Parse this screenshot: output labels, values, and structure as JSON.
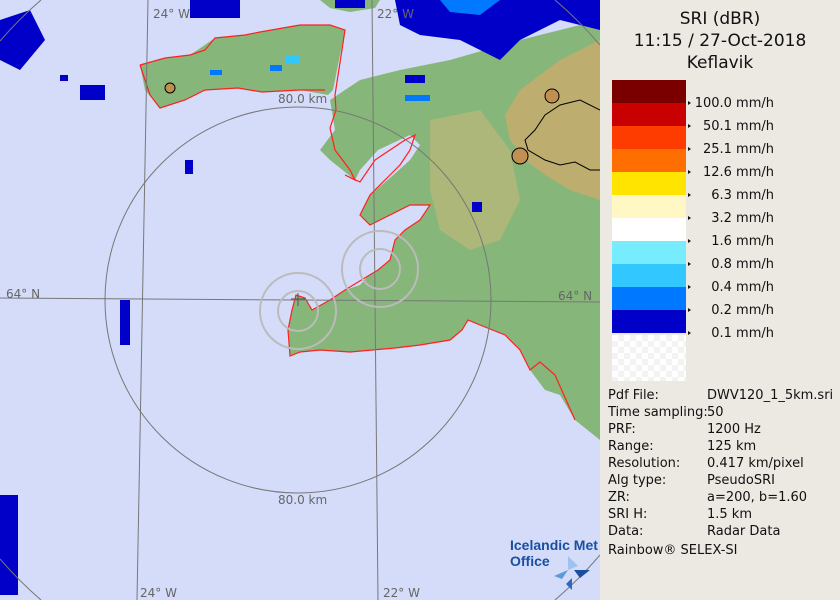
{
  "header": {
    "product": "SRI (dBR)",
    "datetime": "11:15 / 27-Oct-2018",
    "site": "Keflavik"
  },
  "legend": [
    {
      "label": "100.0 mm/h",
      "color": "#7a0000"
    },
    {
      "label": "50.1 mm/h",
      "color": "#c80000"
    },
    {
      "label": "25.1 mm/h",
      "color": "#ff3c00"
    },
    {
      "label": "12.6 mm/h",
      "color": "#ff6e00"
    },
    {
      "label": "6.3 mm/h",
      "color": "#ffe400"
    },
    {
      "label": "3.2 mm/h",
      "color": "#fff8c4"
    },
    {
      "label": "1.6 mm/h",
      "color": "#ffffff"
    },
    {
      "label": "0.8 mm/h",
      "color": "#78ecff"
    },
    {
      "label": "0.4 mm/h",
      "color": "#32c8ff"
    },
    {
      "label": "0.2 mm/h",
      "color": "#0078ff"
    },
    {
      "label": "0.1 mm/h",
      "color": "#0000c8"
    }
  ],
  "info": [
    {
      "key": "Pdf File:",
      "value": "DWV120_1_5km.sri"
    },
    {
      "key": "Time sampling:",
      "value": "50"
    },
    {
      "key": "PRF:",
      "value": "1200 Hz"
    },
    {
      "key": "Range:",
      "value": "125 km"
    },
    {
      "key": "Resolution:",
      "value": "0.417 km/pixel"
    },
    {
      "key": "Alg type:",
      "value": "PseudoSRI"
    },
    {
      "key": "ZR:",
      "value": "a=200, b=1.60"
    },
    {
      "key": "SRI H:",
      "value": "1.5 km"
    },
    {
      "key": "Data:",
      "value": "Radar Data"
    }
  ],
  "footer": "Rainbow® SELEX-SI",
  "map": {
    "lon_labels": [
      "24° W",
      "22° W"
    ],
    "lat_label": "64° N",
    "range_label": "80.0 km",
    "logo_text": [
      "Icelandic Met",
      "Office"
    ],
    "colors": {
      "sea": "#d4dcfa",
      "land": "#7fb377",
      "highland": "#c9b06a",
      "coast": "#ff2020"
    }
  }
}
